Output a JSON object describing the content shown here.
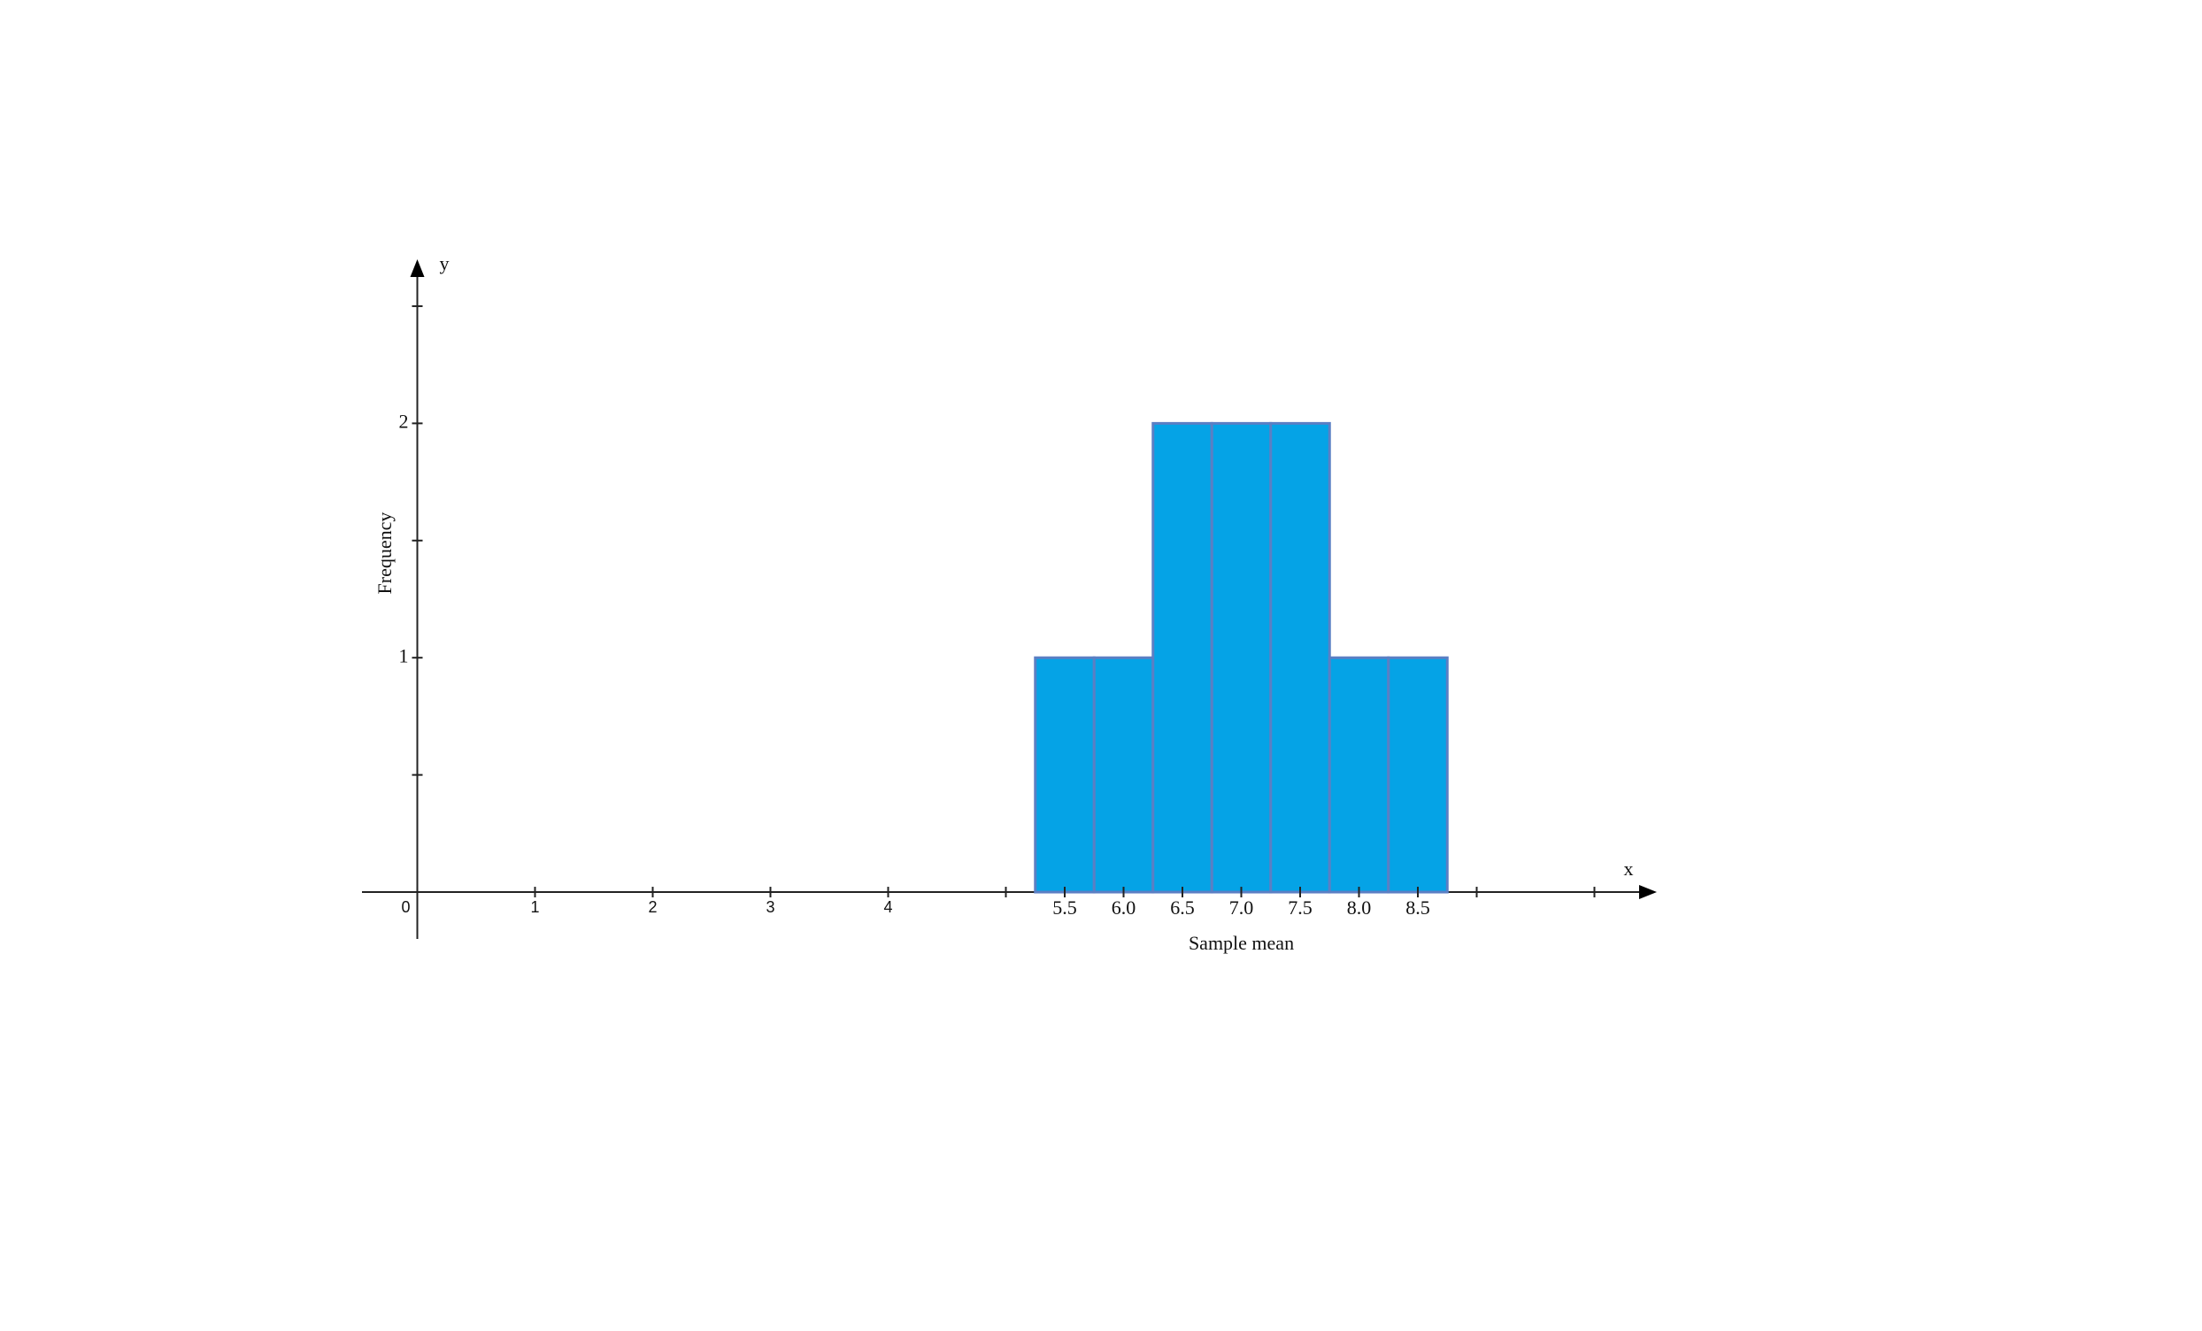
{
  "chart_data": {
    "type": "histogram",
    "x_label": "x",
    "y_label": "y",
    "x_title": "Sample mean",
    "y_title": "Frequency",
    "bins": [
      5.25,
      5.75,
      6.25,
      6.75,
      7.25,
      7.75,
      8.25,
      8.75
    ],
    "values": [
      1,
      1,
      2,
      2,
      2,
      1,
      1
    ],
    "color": "#05a3e6",
    "edge_color": "#5b7fc4",
    "xlim": [
      -0.47,
      10.53
    ],
    "ylim": [
      -0.2,
      2.7
    ],
    "xticks": [
      0,
      1,
      2,
      3,
      4,
      5.5,
      {
        "value": 6,
        "label": "6.0"
      },
      6.5,
      {
        "value": 7,
        "label": "7.0"
      },
      7.5,
      {
        "value": 8,
        "label": "8.0"
      },
      8.5
    ],
    "x_minor_ticks": [
      5,
      9,
      10
    ],
    "yticks": [
      1,
      2
    ],
    "y_minor_ticks": [
      0.5,
      1.5,
      2.5
    ]
  }
}
